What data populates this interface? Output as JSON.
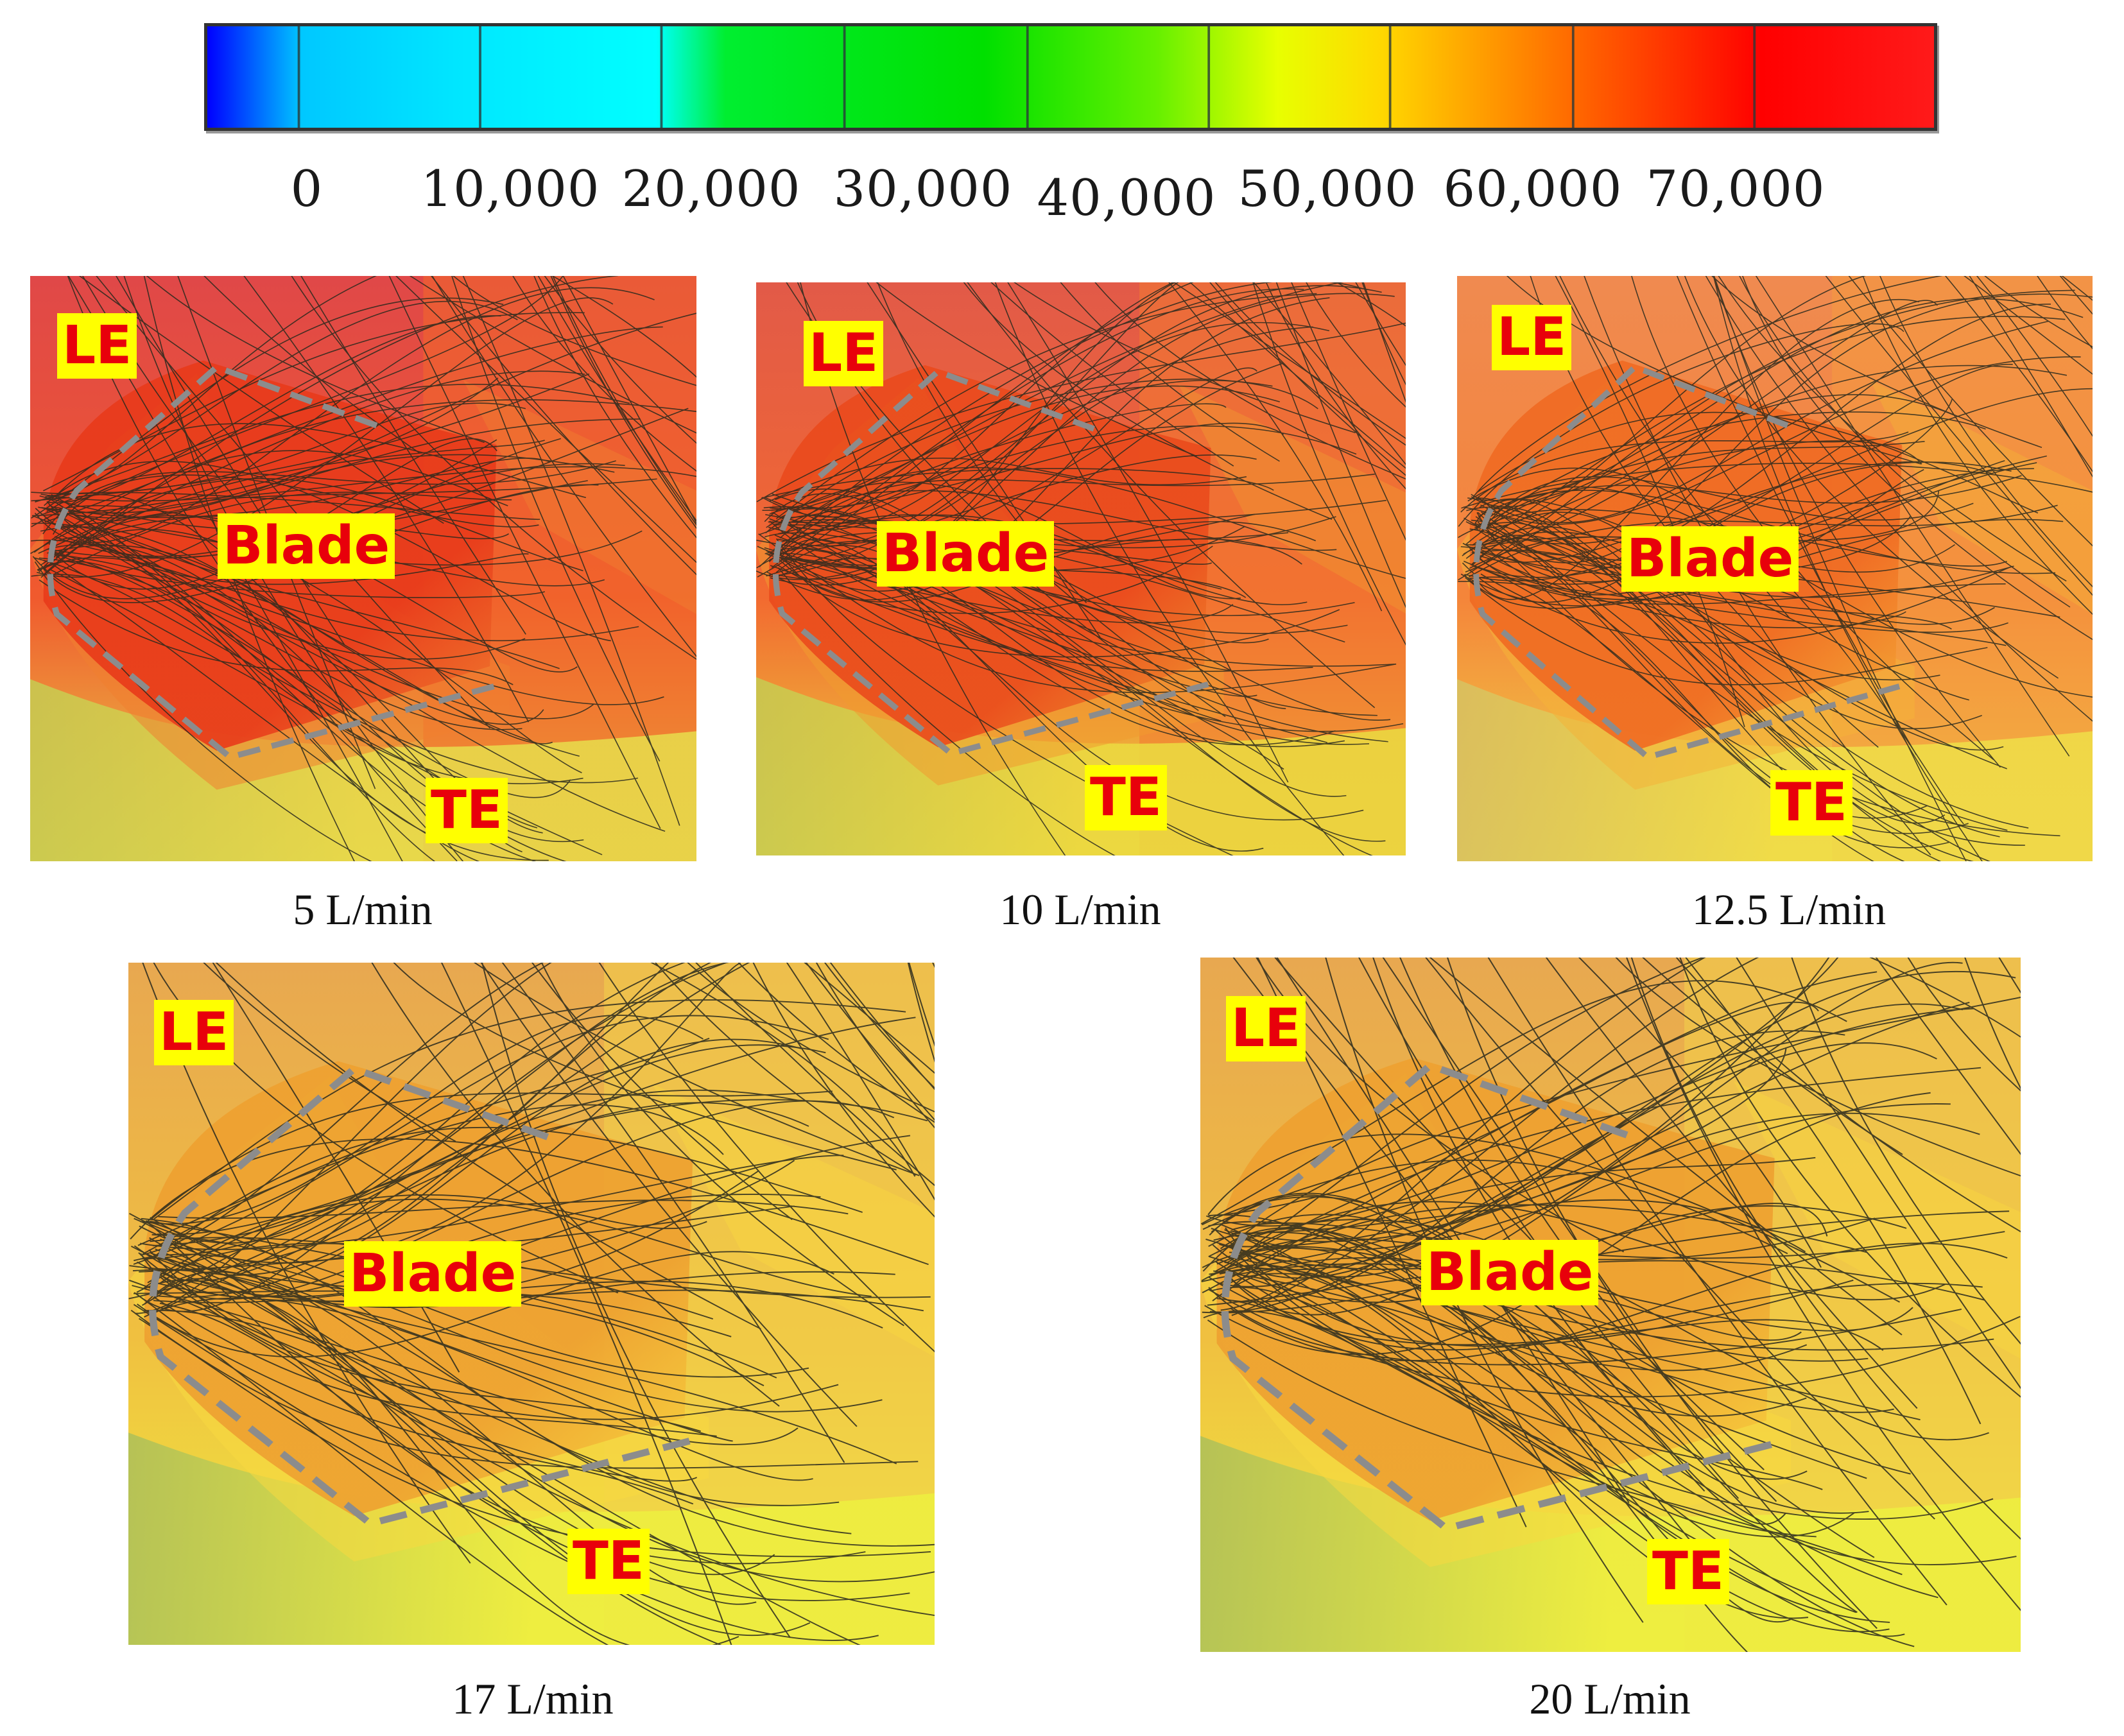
{
  "colorbar": {
    "stops": [
      "#0000ff",
      "#00e5ff",
      "#00ffff",
      "#00e000",
      "#00e000",
      "#c8ff00",
      "#ffd700",
      "#ff5a00",
      "#ff0000",
      "#ff1a1a"
    ],
    "tick_labels": [
      "0",
      "10,000",
      "20,000",
      "30,000",
      "40,000",
      "50,000",
      "60,000",
      "70,000"
    ]
  },
  "panels": [
    {
      "caption": "5 L/min",
      "le": "LE",
      "blade": "Blade",
      "te": "TE",
      "tone": "red"
    },
    {
      "caption": "10 L/min",
      "le": "LE",
      "blade": "Blade",
      "te": "TE",
      "tone": "red-orange"
    },
    {
      "caption": "12.5 L/min",
      "le": "LE",
      "blade": "Blade",
      "te": "TE",
      "tone": "orange"
    },
    {
      "caption": "17 L/min",
      "le": "LE",
      "blade": "Blade",
      "te": "TE",
      "tone": "yellow"
    },
    {
      "caption": "20 L/min",
      "le": "LE",
      "blade": "Blade",
      "te": "TE",
      "tone": "yellow"
    }
  ],
  "colors": {
    "label_bg": "#ffff00",
    "label_text": "#e8000b",
    "outline": "#8c8c8c",
    "streamline": "#2a2a1e"
  }
}
